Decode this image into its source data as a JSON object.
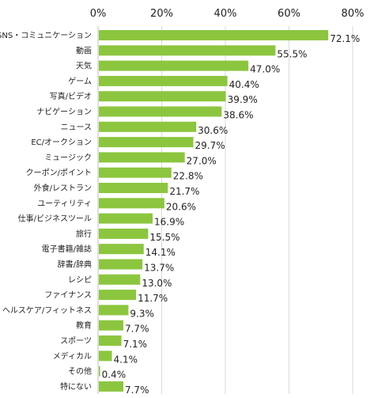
{
  "chart_data": {
    "type": "bar",
    "orientation": "horizontal",
    "categories": [
      "SNS・コミュニケーション",
      "動画",
      "天気",
      "ゲーム",
      "写真/ビデオ",
      "ナビゲーション",
      "ニュース",
      "EC/オークション",
      "ミュージック",
      "クーポン/ポイント",
      "外食/レストラン",
      "ユーティリティ",
      "仕事/ビジネスツール",
      "旅行",
      "電子書籍/雑誌",
      "辞書/辞典",
      "レシピ",
      "ファイナンス",
      "ヘルスケア/フィットネス",
      "教育",
      "スポーツ",
      "メディカル",
      "その他",
      "特にない"
    ],
    "values": [
      72.1,
      55.5,
      47.0,
      40.4,
      39.9,
      38.6,
      30.6,
      29.7,
      27.0,
      22.8,
      21.7,
      20.6,
      16.9,
      15.5,
      14.1,
      13.7,
      13.0,
      11.7,
      9.3,
      7.7,
      7.1,
      4.1,
      0.4,
      7.7
    ],
    "value_labels": [
      "72.1%",
      "55.5%",
      "47.0%",
      "40.4%",
      "39.9%",
      "38.6%",
      "30.6%",
      "29.7%",
      "27.0%",
      "22.8%",
      "21.7%",
      "20.6%",
      "16.9%",
      "15.5%",
      "14.1%",
      "13.7%",
      "13.0%",
      "11.7%",
      "9.3%",
      "7.7%",
      "7.1%",
      "4.1%",
      "0.4%",
      "7.7%"
    ],
    "x_ticks": [
      0,
      20,
      40,
      60,
      80
    ],
    "x_tick_labels": [
      "0%",
      "20%",
      "40%",
      "60%",
      "80%"
    ],
    "xlim": [
      0,
      80
    ],
    "grid": true,
    "bar_color": "#8cc63f",
    "title": "",
    "xlabel": "",
    "ylabel": ""
  }
}
